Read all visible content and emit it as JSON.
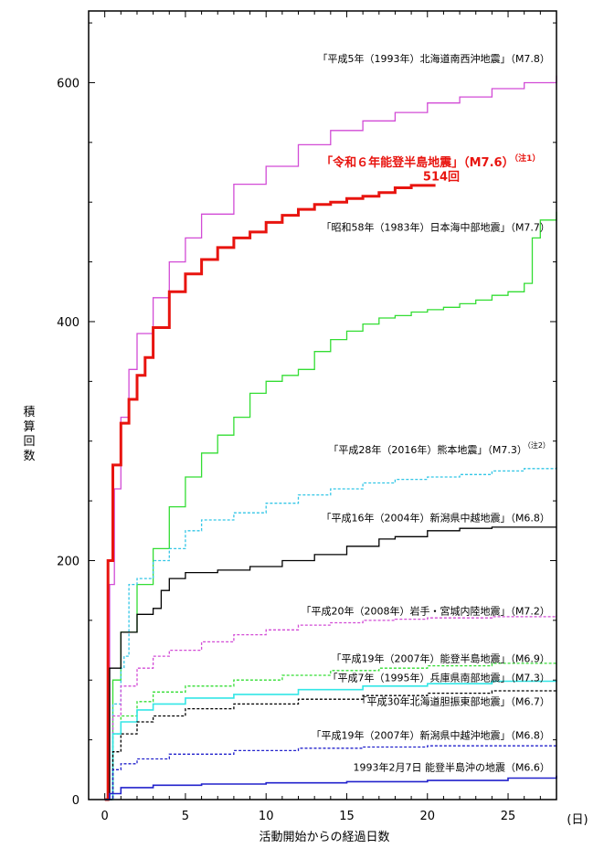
{
  "chart_data": {
    "type": "line",
    "xlabel": "活動開始からの経過日数",
    "xunit": "(日)",
    "ylabel": "積算回数",
    "xlim": [
      -1.0,
      28.0
    ],
    "ylim": [
      0,
      660
    ],
    "xticks": [
      0,
      5,
      10,
      15,
      20,
      25
    ],
    "yticks": [
      0,
      200,
      400,
      600
    ],
    "series": [
      {
        "name": "「平成5年（1993年）北海道南西沖地震」（M7.8）",
        "color": "#d24bd6",
        "dash": "solid",
        "width": 1.3,
        "points": [
          [
            0,
            0
          ],
          [
            0.3,
            180
          ],
          [
            0.6,
            260
          ],
          [
            1,
            320
          ],
          [
            1.5,
            360
          ],
          [
            2,
            390
          ],
          [
            3,
            420
          ],
          [
            4,
            450
          ],
          [
            5,
            470
          ],
          [
            6,
            490
          ],
          [
            8,
            515
          ],
          [
            10,
            530
          ],
          [
            12,
            548
          ],
          [
            14,
            560
          ],
          [
            16,
            568
          ],
          [
            18,
            575
          ],
          [
            20,
            583
          ],
          [
            22,
            588
          ],
          [
            24,
            595
          ],
          [
            26,
            600
          ],
          [
            28,
            606
          ]
        ]
      },
      {
        "name": "「令和６年能登半島地震」（M7.6）",
        "color": "#e8140f",
        "dash": "solid",
        "width": 3,
        "points": [
          [
            0,
            0
          ],
          [
            0.2,
            200
          ],
          [
            0.5,
            280
          ],
          [
            1,
            315
          ],
          [
            1.5,
            335
          ],
          [
            2,
            355
          ],
          [
            2.5,
            370
          ],
          [
            3,
            395
          ],
          [
            4,
            425
          ],
          [
            5,
            440
          ],
          [
            6,
            452
          ],
          [
            7,
            462
          ],
          [
            8,
            470
          ],
          [
            9,
            475
          ],
          [
            10,
            483
          ],
          [
            11,
            489
          ],
          [
            12,
            494
          ],
          [
            13,
            498
          ],
          [
            14,
            500
          ],
          [
            15,
            503
          ],
          [
            16,
            505
          ],
          [
            17,
            508
          ],
          [
            18,
            512
          ],
          [
            19,
            514
          ],
          [
            20.5,
            514
          ]
        ]
      },
      {
        "name": "「昭和58年（1983年）日本海中部地震」（M7.7）",
        "color": "#33dd33",
        "dash": "solid",
        "width": 1.3,
        "points": [
          [
            0,
            0
          ],
          [
            0.5,
            100
          ],
          [
            1,
            140
          ],
          [
            2,
            180
          ],
          [
            3,
            210
          ],
          [
            4,
            245
          ],
          [
            5,
            270
          ],
          [
            6,
            290
          ],
          [
            7,
            305
          ],
          [
            8,
            320
          ],
          [
            9,
            340
          ],
          [
            10,
            350
          ],
          [
            11,
            355
          ],
          [
            12,
            360
          ],
          [
            13,
            375
          ],
          [
            14,
            385
          ],
          [
            15,
            392
          ],
          [
            16,
            398
          ],
          [
            17,
            403
          ],
          [
            18,
            405
          ],
          [
            19,
            408
          ],
          [
            20,
            410
          ],
          [
            21,
            412
          ],
          [
            22,
            415
          ],
          [
            23,
            418
          ],
          [
            24,
            422
          ],
          [
            25,
            425
          ],
          [
            26,
            432
          ],
          [
            26.5,
            470
          ],
          [
            27,
            485
          ],
          [
            28,
            492
          ]
        ]
      },
      {
        "name": "「平成28年（2016年）熊本地震」（M7.3）",
        "color": "#33c6e6",
        "dash": "dashed",
        "width": 1.3,
        "points": [
          [
            0,
            0
          ],
          [
            0.5,
            80
          ],
          [
            1,
            110
          ],
          [
            1.2,
            120
          ],
          [
            1.5,
            180
          ],
          [
            2,
            185
          ],
          [
            3,
            200
          ],
          [
            4,
            210
          ],
          [
            5,
            225
          ],
          [
            6,
            234
          ],
          [
            8,
            240
          ],
          [
            10,
            248
          ],
          [
            12,
            255
          ],
          [
            14,
            260
          ],
          [
            16,
            265
          ],
          [
            18,
            268
          ],
          [
            20,
            270
          ],
          [
            22,
            272
          ],
          [
            24,
            275
          ],
          [
            26,
            277
          ],
          [
            28,
            280
          ]
        ]
      },
      {
        "name": "「平成16年（2004年）新潟県中越地震」（M6.8）",
        "color": "#000000",
        "dash": "solid",
        "width": 1.3,
        "points": [
          [
            0,
            0
          ],
          [
            0.3,
            110
          ],
          [
            1,
            140
          ],
          [
            2,
            155
          ],
          [
            3,
            160
          ],
          [
            3.5,
            175
          ],
          [
            4,
            185
          ],
          [
            5,
            190
          ],
          [
            7,
            192
          ],
          [
            9,
            195
          ],
          [
            11,
            200
          ],
          [
            13,
            205
          ],
          [
            15,
            212
          ],
          [
            17,
            218
          ],
          [
            18,
            220
          ],
          [
            20,
            225
          ],
          [
            22,
            227
          ],
          [
            24,
            228
          ],
          [
            26,
            228
          ],
          [
            28,
            228
          ]
        ]
      },
      {
        "name": "「平成20年（2008年）岩手・宮城内陸地震」（M7.2）",
        "color": "#d24bd6",
        "dash": "dashed",
        "width": 1.3,
        "points": [
          [
            0,
            0
          ],
          [
            0.5,
            70
          ],
          [
            1,
            95
          ],
          [
            2,
            110
          ],
          [
            3,
            120
          ],
          [
            4,
            125
          ],
          [
            6,
            132
          ],
          [
            8,
            138
          ],
          [
            10,
            142
          ],
          [
            12,
            146
          ],
          [
            14,
            148
          ],
          [
            16,
            150
          ],
          [
            18,
            151
          ],
          [
            20,
            152
          ],
          [
            24,
            153
          ],
          [
            28,
            154
          ]
        ]
      },
      {
        "name": "「平成19年（2007年）能登半島地震」（M6.9）",
        "color": "#33dd33",
        "dash": "dashed",
        "width": 1.3,
        "points": [
          [
            0,
            0
          ],
          [
            0.5,
            55
          ],
          [
            1,
            70
          ],
          [
            2,
            82
          ],
          [
            3,
            90
          ],
          [
            5,
            95
          ],
          [
            8,
            100
          ],
          [
            11,
            104
          ],
          [
            14,
            108
          ],
          [
            17,
            110
          ],
          [
            20,
            112
          ],
          [
            24,
            114
          ],
          [
            28,
            115
          ]
        ]
      },
      {
        "name": "「平成7年（1995年）兵庫県南部地震」（M7.3）",
        "color": "#33e6e6",
        "dash": "solid",
        "width": 1.6,
        "points": [
          [
            0,
            0
          ],
          [
            0.5,
            55
          ],
          [
            1,
            65
          ],
          [
            2,
            75
          ],
          [
            3,
            80
          ],
          [
            5,
            85
          ],
          [
            8,
            88
          ],
          [
            12,
            92
          ],
          [
            16,
            95
          ],
          [
            20,
            97
          ],
          [
            24,
            99
          ],
          [
            28,
            100
          ]
        ]
      },
      {
        "name": "「平成30年北海道胆振東部地震」（M6.7）",
        "color": "#000000",
        "dash": "dashed",
        "width": 1.3,
        "points": [
          [
            0,
            0
          ],
          [
            0.5,
            40
          ],
          [
            1,
            55
          ],
          [
            2,
            65
          ],
          [
            3,
            70
          ],
          [
            5,
            76
          ],
          [
            8,
            80
          ],
          [
            12,
            84
          ],
          [
            16,
            87
          ],
          [
            20,
            89
          ],
          [
            24,
            91
          ],
          [
            28,
            92
          ]
        ]
      },
      {
        "name": "「平成19年（2007年）新潟県中越沖地震」（M6.8）",
        "color": "#2222cc",
        "dash": "dashed",
        "width": 1.3,
        "points": [
          [
            0,
            0
          ],
          [
            0.5,
            25
          ],
          [
            1,
            30
          ],
          [
            2,
            34
          ],
          [
            4,
            38
          ],
          [
            8,
            41
          ],
          [
            12,
            43
          ],
          [
            16,
            44
          ],
          [
            20,
            45
          ],
          [
            28,
            46
          ]
        ]
      },
      {
        "name": "1993年2月7日 能登半島沖の地震（M6.6）",
        "color": "#2222cc",
        "dash": "solid",
        "width": 1.6,
        "points": [
          [
            0,
            0
          ],
          [
            0.3,
            5
          ],
          [
            1,
            10
          ],
          [
            3,
            12
          ],
          [
            6,
            13
          ],
          [
            10,
            14
          ],
          [
            15,
            15
          ],
          [
            20,
            16
          ],
          [
            25,
            18
          ],
          [
            28,
            20
          ]
        ]
      }
    ],
    "annotations": [
      {
        "text": "「平成5年（1993年）北海道南西沖地震」（M7.8）",
        "note": "",
        "color": "black",
        "x": 27.6,
        "y": 617
      },
      {
        "text": "「令和６年能登半島地震」（M7.6）",
        "note": "（注1）",
        "color": "red",
        "x": 27.0,
        "y": 530
      },
      {
        "text": "514回",
        "note": "",
        "color": "red",
        "x": 22.0,
        "y": 518
      },
      {
        "text": "「昭和58年（1983年）日本海中部地震」（M7.7）",
        "note": "",
        "color": "black",
        "x": 27.6,
        "y": 476
      },
      {
        "text": "「平成28年（2016年）熊本地震」（M7.3）",
        "note": "（注2）",
        "color": "black",
        "x": 27.6,
        "y": 290
      },
      {
        "text": "「平成16年（2004年）新潟県中越地震」（M6.8）",
        "note": "",
        "color": "black",
        "x": 27.6,
        "y": 233
      },
      {
        "text": "「平成20年（2008年）岩手・宮城内陸地震」（M7.2）",
        "note": "",
        "color": "black",
        "x": 27.6,
        "y": 155
      },
      {
        "text": "「平成19年（2007年）能登半島地震」（M6.9）",
        "note": "",
        "color": "black",
        "x": 27.6,
        "y": 115
      },
      {
        "text": "「平成7年（1995年）兵庫県南部地震」（M7.3）",
        "note": "",
        "color": "black",
        "x": 27.6,
        "y": 99
      },
      {
        "text": "「平成30年北海道胆振東部地震」（M6.7）",
        "note": "",
        "color": "black",
        "x": 27.6,
        "y": 79
      },
      {
        "text": "「平成19年（2007年）新潟県中越沖地震」（M6.8）",
        "note": "",
        "color": "black",
        "x": 27.6,
        "y": 51
      },
      {
        "text": "1993年2月7日 能登半島沖の地震（M6.6）",
        "note": "",
        "color": "black",
        "x": 27.6,
        "y": 24
      }
    ]
  }
}
